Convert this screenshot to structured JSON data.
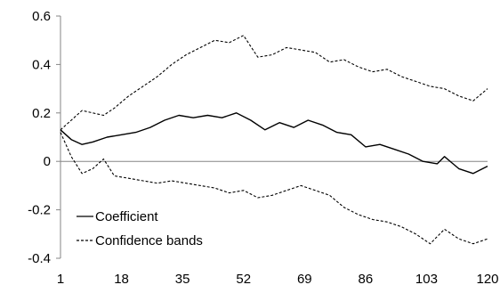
{
  "chart_data": {
    "type": "line",
    "title": "",
    "xlabel": "",
    "ylabel": "",
    "ylim": [
      -0.4,
      0.6
    ],
    "xlim": [
      1,
      120
    ],
    "yticks": [
      "0.6",
      "0.4",
      "0.2",
      "0",
      "-0.2",
      "-0.4"
    ],
    "xticks": [
      "1",
      "18",
      "35",
      "52",
      "69",
      "86",
      "103",
      "120"
    ],
    "grid": false,
    "zero_line": true,
    "legend_position": "bottom-left",
    "legend": [
      "Coefficient",
      "Confidence bands"
    ],
    "series": [
      {
        "name": "Coefficient",
        "style": "solid",
        "color": "#000000",
        "points": [
          [
            1,
            0.13
          ],
          [
            4,
            0.09
          ],
          [
            7,
            0.07
          ],
          [
            10,
            0.08
          ],
          [
            14,
            0.1
          ],
          [
            18,
            0.11
          ],
          [
            22,
            0.12
          ],
          [
            26,
            0.14
          ],
          [
            30,
            0.17
          ],
          [
            34,
            0.19
          ],
          [
            38,
            0.18
          ],
          [
            42,
            0.19
          ],
          [
            46,
            0.18
          ],
          [
            50,
            0.2
          ],
          [
            54,
            0.17
          ],
          [
            58,
            0.13
          ],
          [
            62,
            0.16
          ],
          [
            66,
            0.14
          ],
          [
            70,
            0.17
          ],
          [
            74,
            0.15
          ],
          [
            78,
            0.12
          ],
          [
            82,
            0.11
          ],
          [
            86,
            0.06
          ],
          [
            90,
            0.07
          ],
          [
            94,
            0.05
          ],
          [
            98,
            0.03
          ],
          [
            102,
            0.0
          ],
          [
            106,
            -0.01
          ],
          [
            108,
            0.02
          ],
          [
            112,
            -0.03
          ],
          [
            116,
            -0.05
          ],
          [
            120,
            -0.02
          ]
        ]
      },
      {
        "name": "Confidence bands",
        "style": "dashed",
        "color": "#000000",
        "points": [
          [
            1,
            0.13
          ],
          [
            4,
            0.17
          ],
          [
            7,
            0.21
          ],
          [
            10,
            0.2
          ],
          [
            13,
            0.19
          ],
          [
            16,
            0.22
          ],
          [
            20,
            0.27
          ],
          [
            24,
            0.31
          ],
          [
            28,
            0.35
          ],
          [
            32,
            0.4
          ],
          [
            36,
            0.44
          ],
          [
            40,
            0.47
          ],
          [
            44,
            0.5
          ],
          [
            48,
            0.49
          ],
          [
            52,
            0.52
          ],
          [
            56,
            0.43
          ],
          [
            60,
            0.44
          ],
          [
            64,
            0.47
          ],
          [
            68,
            0.46
          ],
          [
            72,
            0.45
          ],
          [
            76,
            0.41
          ],
          [
            80,
            0.42
          ],
          [
            84,
            0.39
          ],
          [
            88,
            0.37
          ],
          [
            92,
            0.38
          ],
          [
            96,
            0.35
          ],
          [
            100,
            0.33
          ],
          [
            104,
            0.31
          ],
          [
            108,
            0.3
          ],
          [
            112,
            0.27
          ],
          [
            116,
            0.25
          ],
          [
            120,
            0.3
          ]
        ]
      },
      {
        "name": "Confidence bands",
        "style": "dashed",
        "color": "#000000",
        "points": [
          [
            1,
            0.12
          ],
          [
            4,
            0.02
          ],
          [
            7,
            -0.05
          ],
          [
            10,
            -0.03
          ],
          [
            13,
            0.01
          ],
          [
            16,
            -0.06
          ],
          [
            20,
            -0.07
          ],
          [
            24,
            -0.08
          ],
          [
            28,
            -0.09
          ],
          [
            32,
            -0.08
          ],
          [
            36,
            -0.09
          ],
          [
            40,
            -0.1
          ],
          [
            44,
            -0.11
          ],
          [
            48,
            -0.13
          ],
          [
            52,
            -0.12
          ],
          [
            56,
            -0.15
          ],
          [
            60,
            -0.14
          ],
          [
            64,
            -0.12
          ],
          [
            68,
            -0.1
          ],
          [
            72,
            -0.12
          ],
          [
            76,
            -0.14
          ],
          [
            80,
            -0.19
          ],
          [
            84,
            -0.22
          ],
          [
            88,
            -0.24
          ],
          [
            92,
            -0.25
          ],
          [
            96,
            -0.27
          ],
          [
            100,
            -0.3
          ],
          [
            104,
            -0.34
          ],
          [
            108,
            -0.28
          ],
          [
            112,
            -0.32
          ],
          [
            116,
            -0.34
          ],
          [
            120,
            -0.32
          ]
        ]
      }
    ]
  }
}
